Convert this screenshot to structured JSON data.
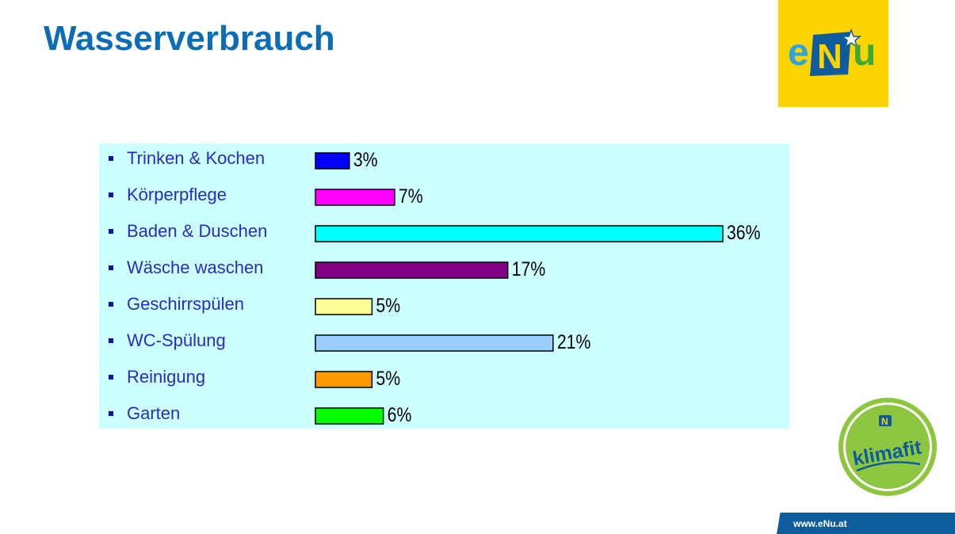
{
  "slide": {
    "title": "Wasserverbrauch",
    "footer_url": "www.eNu.at"
  },
  "logo": {
    "text": "eNu",
    "background": "#fdd400",
    "colors": {
      "e": "#2ea3dc",
      "N_box": "#0e5c9e",
      "u": "#3aa935"
    }
  },
  "badge": {
    "text": "klimafit",
    "color": "#8dc63f"
  },
  "chart_data": {
    "type": "bar",
    "orientation": "horizontal",
    "categories": [
      "Trinken & Kochen",
      "Körperpflege",
      "Baden & Duschen",
      "Wäsche waschen",
      "Geschirrspülen",
      "WC-Spülung",
      "Reinigung",
      "Garten"
    ],
    "values": [
      3,
      7,
      36,
      17,
      5,
      21,
      5,
      6
    ],
    "labels": [
      "3%",
      "7%",
      "36%",
      "17%",
      "5%",
      "21%",
      "5%",
      "6%"
    ],
    "colors": [
      "#0000ff",
      "#ff00ff",
      "#00ffff",
      "#800080",
      "#ffff99",
      "#99ccff",
      "#ff9900",
      "#00ff00"
    ],
    "title": "",
    "xlabel": "",
    "ylabel": "",
    "xlim": [
      0,
      36
    ],
    "unit": "%",
    "grid": false,
    "legend": "none",
    "background": "#ccffff"
  }
}
